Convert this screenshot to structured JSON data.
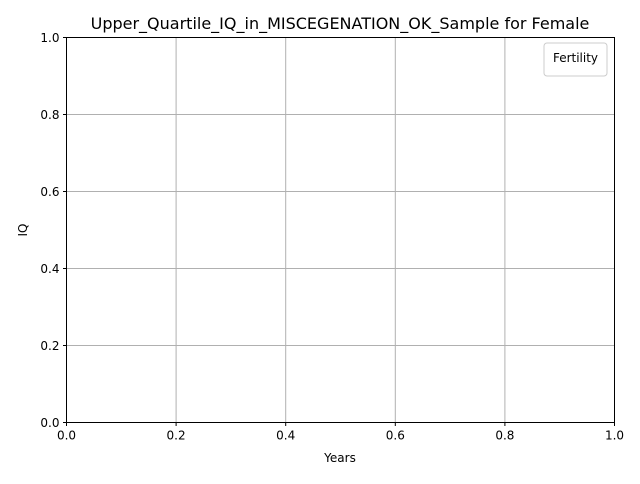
{
  "chart_data": {
    "type": "line",
    "title": "Upper_Quartile_IQ_in_MISCEGENATION_OK_Sample for Female",
    "xlabel": "Years",
    "ylabel": "IQ",
    "xlim": [
      0.0,
      1.0
    ],
    "ylim": [
      0.0,
      1.0
    ],
    "xticks": [
      "0.0",
      "0.2",
      "0.4",
      "0.6",
      "0.8",
      "1.0"
    ],
    "yticks": [
      "0.0",
      "0.2",
      "0.4",
      "0.6",
      "0.8",
      "1.0"
    ],
    "grid": true,
    "legend": {
      "title": "Fertility",
      "position": "top-right",
      "entries": []
    },
    "series": []
  },
  "colors": {
    "axes": "#000000",
    "grid": "#b0b0b0",
    "legend_border": "#cccccc",
    "background": "#ffffff"
  }
}
